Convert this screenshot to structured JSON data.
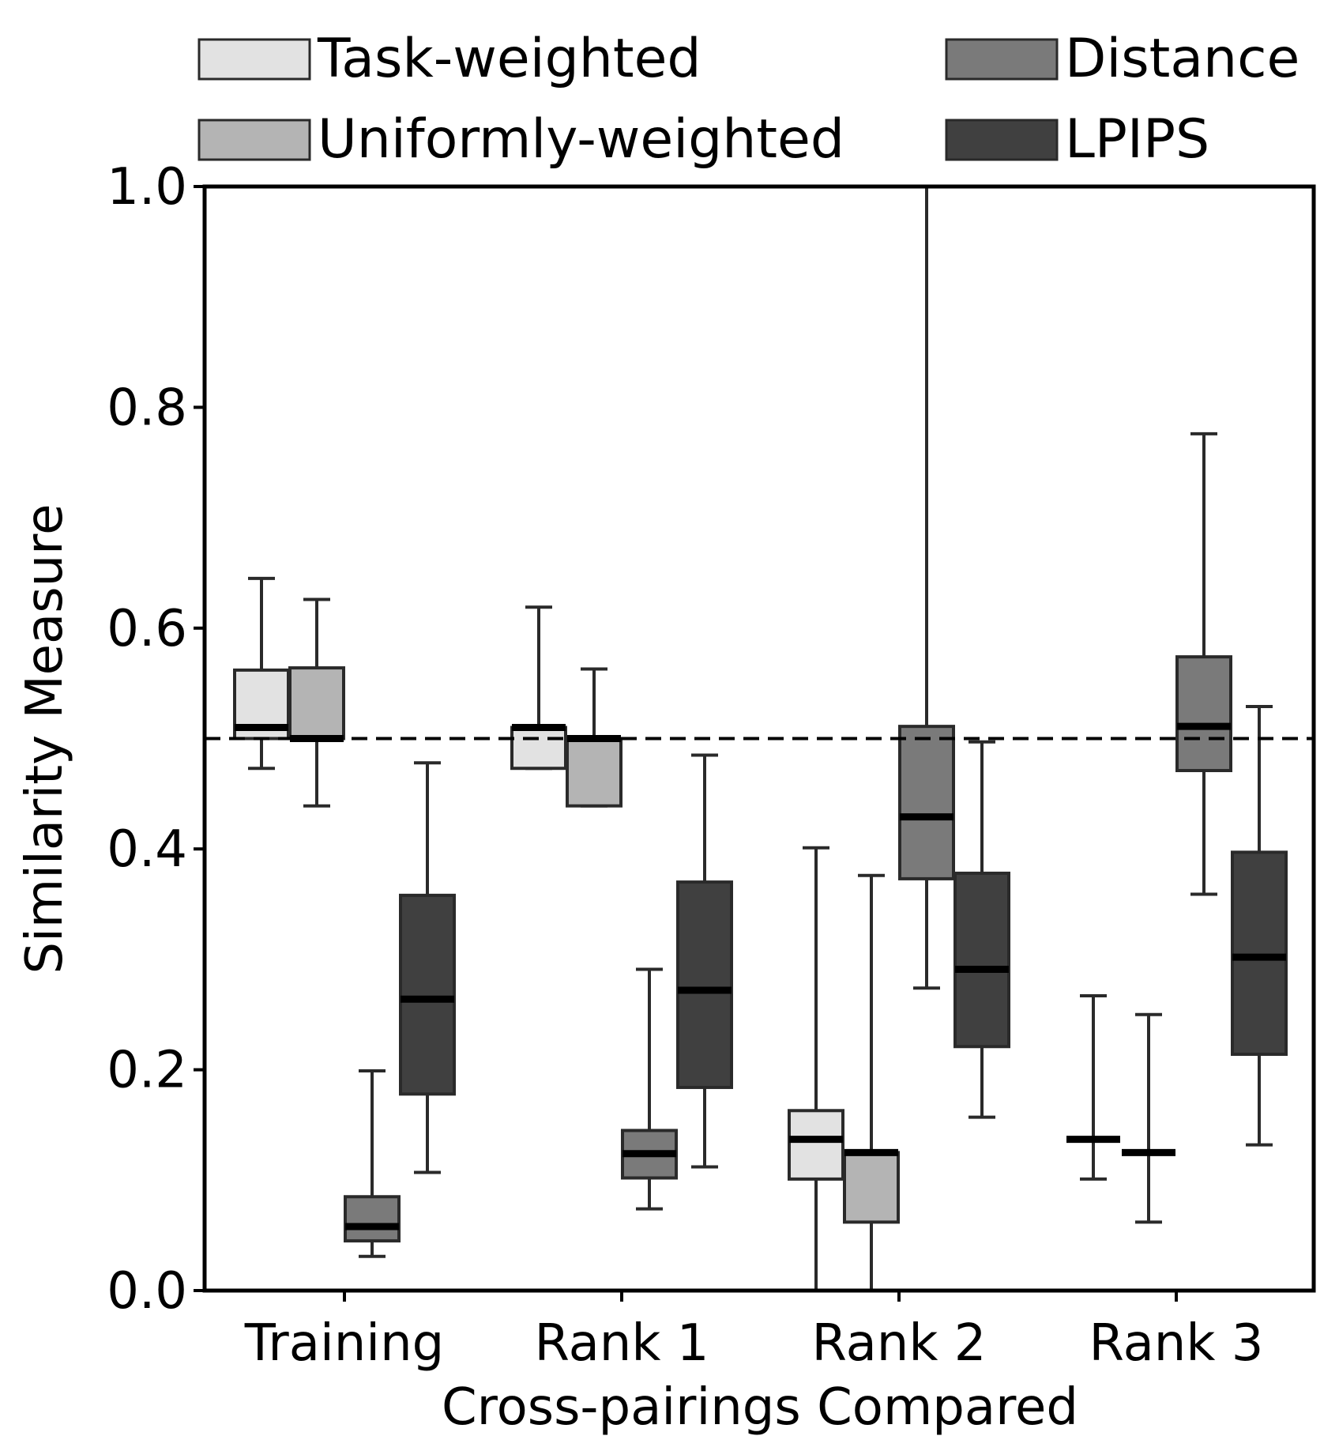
{
  "chart_data": {
    "type": "box",
    "title": "",
    "xlabel": "Cross-pairings Compared",
    "ylabel": "Similarity Measure",
    "ylim": [
      0.0,
      1.0
    ],
    "yticks": [
      "0.0",
      "0.2",
      "0.4",
      "0.6",
      "0.8",
      "1.0"
    ],
    "categories": [
      "Training",
      "Rank 1",
      "Rank 2",
      "Rank 3"
    ],
    "reference_line": {
      "y": 0.5,
      "style": "dashed"
    },
    "legend_position": "top",
    "series": [
      {
        "name": "Task-weighted",
        "color": "#e2e2e2",
        "boxes": [
          {
            "whislo": 0.473,
            "q1": 0.5,
            "med": 0.51,
            "q3": 0.562,
            "whishi": 0.645
          },
          {
            "whislo": 0.473,
            "q1": 0.473,
            "med": 0.51,
            "q3": 0.51,
            "whishi": 0.619
          },
          {
            "whislo": 0.0,
            "q1": 0.101,
            "med": 0.137,
            "q3": 0.163,
            "whishi": 0.401
          },
          {
            "whislo": 0.101,
            "q1": 0.137,
            "med": 0.137,
            "q3": 0.137,
            "whishi": 0.267
          }
        ]
      },
      {
        "name": "Uniformly-weighted",
        "color": "#b4b4b4",
        "boxes": [
          {
            "whislo": 0.439,
            "q1": 0.5,
            "med": 0.5,
            "q3": 0.564,
            "whishi": 0.626
          },
          {
            "whislo": 0.439,
            "q1": 0.439,
            "med": 0.5,
            "q3": 0.5,
            "whishi": 0.563
          },
          {
            "whislo": 0.0,
            "q1": 0.062,
            "med": 0.125,
            "q3": 0.125,
            "whishi": 0.376
          },
          {
            "whislo": 0.062,
            "q1": 0.125,
            "med": 0.125,
            "q3": 0.125,
            "whishi": 0.25
          }
        ]
      },
      {
        "name": "Distance",
        "color": "#7a7a7a",
        "boxes": [
          {
            "whislo": 0.031,
            "q1": 0.045,
            "med": 0.058,
            "q3": 0.085,
            "whishi": 0.199
          },
          {
            "whislo": 0.074,
            "q1": 0.102,
            "med": 0.124,
            "q3": 0.145,
            "whishi": 0.291
          },
          {
            "whislo": 0.274,
            "q1": 0.373,
            "med": 0.429,
            "q3": 0.511,
            "whishi": 1.0
          },
          {
            "whislo": 0.359,
            "q1": 0.471,
            "med": 0.511,
            "q3": 0.574,
            "whishi": 0.776
          }
        ]
      },
      {
        "name": "LPIPS",
        "color": "#404040",
        "boxes": [
          {
            "whislo": 0.107,
            "q1": 0.178,
            "med": 0.264,
            "q3": 0.358,
            "whishi": 0.478
          },
          {
            "whislo": 0.112,
            "q1": 0.184,
            "med": 0.272,
            "q3": 0.37,
            "whishi": 0.485
          },
          {
            "whislo": 0.157,
            "q1": 0.221,
            "med": 0.291,
            "q3": 0.378,
            "whishi": 0.497
          },
          {
            "whislo": 0.132,
            "q1": 0.214,
            "med": 0.302,
            "q3": 0.397,
            "whishi": 0.529
          }
        ]
      }
    ]
  }
}
